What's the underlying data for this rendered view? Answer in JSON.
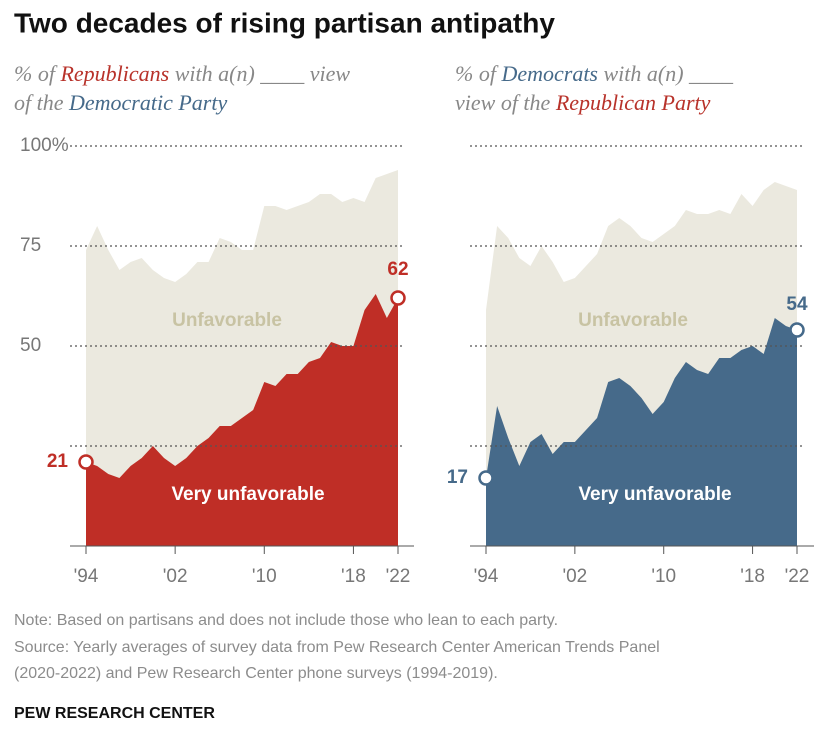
{
  "title": "Two decades of rising partisan antipathy",
  "chart_data": [
    {
      "type": "area",
      "subtitle": [
        [
          {
            "text": "% of ",
            "color": "#888888"
          },
          {
            "text": "Republicans",
            "color": "#b8322a"
          },
          {
            "text": " with a(n) ____ view",
            "color": "#888888"
          }
        ],
        [
          {
            "text": "of the ",
            "color": "#888888"
          },
          {
            "text": "Democratic Party",
            "color": "#466a8a"
          }
        ]
      ],
      "x": [
        1994,
        1995,
        1996,
        1997,
        1998,
        1999,
        2000,
        2001,
        2002,
        2003,
        2004,
        2005,
        2006,
        2007,
        2008,
        2009,
        2010,
        2011,
        2012,
        2013,
        2014,
        2015,
        2016,
        2017,
        2018,
        2019,
        2020,
        2021,
        2022
      ],
      "series": [
        {
          "name": "Unfavorable",
          "color": "#ebe9df",
          "label_color": "#c8c3a3",
          "values": [
            74,
            80,
            74,
            69,
            71,
            72,
            69,
            67,
            66,
            68,
            71,
            71,
            77,
            76,
            74,
            74,
            85,
            85,
            84,
            85,
            86,
            88,
            88,
            86,
            87,
            86,
            92,
            93,
            94
          ]
        },
        {
          "name": "Very unfavorable",
          "color": "#bf2e26",
          "label_color": "#ffffff",
          "values": [
            21,
            20,
            18,
            17,
            20,
            22,
            25,
            22,
            20,
            22,
            25,
            27,
            30,
            30,
            32,
            34,
            41,
            40,
            43,
            43,
            46,
            47,
            51,
            50,
            50,
            59,
            63,
            57,
            62
          ]
        }
      ],
      "marker_color": "#bf2e26",
      "xlim": [
        1994,
        2022
      ],
      "xticks": [
        {
          "value": 1994,
          "label": "'94"
        },
        {
          "value": 2002,
          "label": "'02"
        },
        {
          "value": 2010,
          "label": "'10"
        },
        {
          "value": 2018,
          "label": "'18"
        },
        {
          "value": 2022,
          "label": "'22"
        }
      ],
      "ylim": [
        0,
        100
      ],
      "yticks": [
        {
          "value": 100,
          "label": "100%"
        },
        75,
        50,
        {
          "value": 25,
          "label": null
        }
      ],
      "grid": true
    },
    {
      "type": "area",
      "subtitle": [
        [
          {
            "text": "% of ",
            "color": "#888888"
          },
          {
            "text": "Democrats",
            "color": "#466a8a"
          },
          {
            "text": " with a(n) ____",
            "color": "#888888"
          }
        ],
        [
          {
            "text": "view of the ",
            "color": "#888888"
          },
          {
            "text": "Republican Party",
            "color": "#b8322a"
          }
        ]
      ],
      "x": [
        1994,
        1995,
        1996,
        1997,
        1998,
        1999,
        2000,
        2001,
        2002,
        2003,
        2004,
        2005,
        2006,
        2007,
        2008,
        2009,
        2010,
        2011,
        2012,
        2013,
        2014,
        2015,
        2016,
        2017,
        2018,
        2019,
        2020,
        2021,
        2022
      ],
      "series": [
        {
          "name": "Unfavorable",
          "color": "#ebe9df",
          "label_color": "#c8c3a3",
          "values": [
            59,
            80,
            77,
            72,
            70,
            75,
            71,
            66,
            67,
            70,
            73,
            80,
            82,
            80,
            77,
            76,
            78,
            80,
            84,
            83,
            83,
            84,
            83,
            88,
            85,
            89,
            91,
            90,
            89
          ]
        },
        {
          "name": "Very unfavorable",
          "color": "#466a8a",
          "label_color": "#ffffff",
          "values": [
            17,
            35,
            27,
            20,
            26,
            28,
            23,
            26,
            26,
            29,
            32,
            41,
            42,
            40,
            37,
            33,
            36,
            42,
            46,
            44,
            43,
            47,
            47,
            49,
            50,
            48,
            57,
            55,
            54
          ]
        }
      ],
      "marker_color": "#466a8a",
      "xlim": [
        1994,
        2022
      ],
      "xticks": [
        {
          "value": 1994,
          "label": "'94"
        },
        {
          "value": 2002,
          "label": "'02"
        },
        {
          "value": 2010,
          "label": "'10"
        },
        {
          "value": 2018,
          "label": "'18"
        },
        {
          "value": 2022,
          "label": "'22"
        }
      ],
      "ylim": [
        0,
        100
      ],
      "yticks": [
        {
          "value": 100,
          "label": null
        },
        {
          "value": 75,
          "label": null
        },
        {
          "value": 50,
          "label": null
        },
        {
          "value": 25,
          "label": null
        }
      ],
      "grid": true
    }
  ],
  "note": "Note: Based on partisans and does not include those who lean to each party.",
  "source": [
    "Source: Yearly averages of survey data from Pew Research Center American Trends Panel",
    "(2020-2022) and Pew Research Center phone surveys (1994-2019)."
  ],
  "credit": "PEW RESEARCH CENTER"
}
